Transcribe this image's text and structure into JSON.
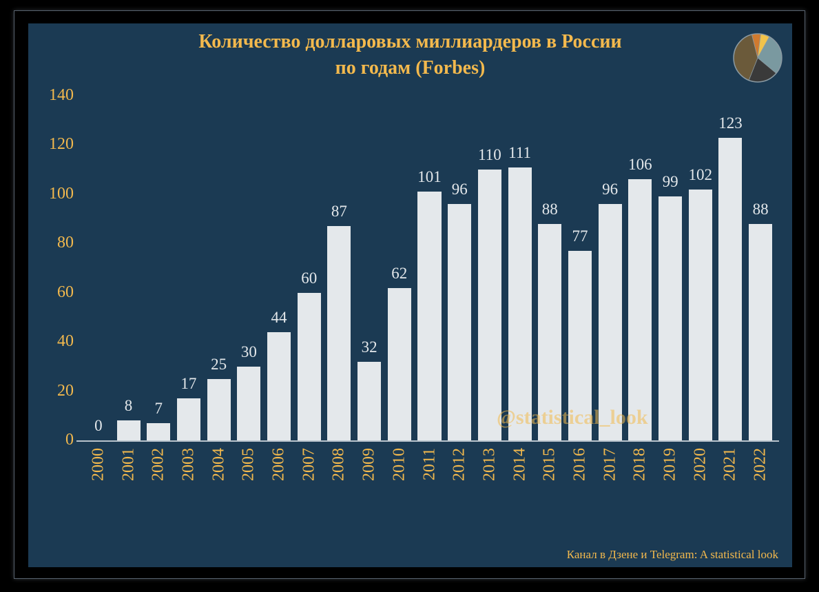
{
  "chart": {
    "type": "bar",
    "title_line1": "Количество долларовых миллиардеров в России",
    "title_line2": "по годам (Forbes)",
    "title_color": "#f3b94d",
    "title_fontsize": 28,
    "background_color": "#1b3a53",
    "outer_background": "#000000",
    "axis_line_color": "#b9c3cc",
    "bar_color": "#e4e8eb",
    "bar_label_color": "#e4e8eb",
    "label_fontsize": 23,
    "axis_label_color": "#f3b94d",
    "axis_fontsize": 24,
    "ylim": [
      0,
      140
    ],
    "ytick_step": 20,
    "yticks": [
      0,
      20,
      40,
      60,
      80,
      100,
      120,
      140
    ],
    "bar_width": 0.78,
    "categories": [
      "2000",
      "2001",
      "2002",
      "2003",
      "2004",
      "2005",
      "2006",
      "2007",
      "2008",
      "2009",
      "2010",
      "2011",
      "2012",
      "2013",
      "2014",
      "2015",
      "2016",
      "2017",
      "2018",
      "2019",
      "2020",
      "2021",
      "2022"
    ],
    "values": [
      0,
      8,
      7,
      17,
      25,
      30,
      44,
      60,
      87,
      32,
      62,
      101,
      96,
      110,
      111,
      88,
      77,
      96,
      106,
      99,
      102,
      123,
      88
    ],
    "value_label_y_offset": 8,
    "watermark_text": "@statistical_look",
    "watermark_color": "rgba(243,185,77,0.55)",
    "footer_text": "Канал в Дзене и Telegram: A statistical look",
    "footer_color": "#f3b94d",
    "logo_pie": {
      "slices": [
        {
          "color": "#d07a2e",
          "fraction": 0.06
        },
        {
          "color": "#f2c34a",
          "fraction": 0.06
        },
        {
          "color": "#7a99a0",
          "fraction": 0.28
        },
        {
          "color": "#3a3a3a",
          "fraction": 0.2
        },
        {
          "color": "#6b5a3a",
          "fraction": 0.4
        }
      ],
      "border_color": "#8a9aa3"
    }
  }
}
